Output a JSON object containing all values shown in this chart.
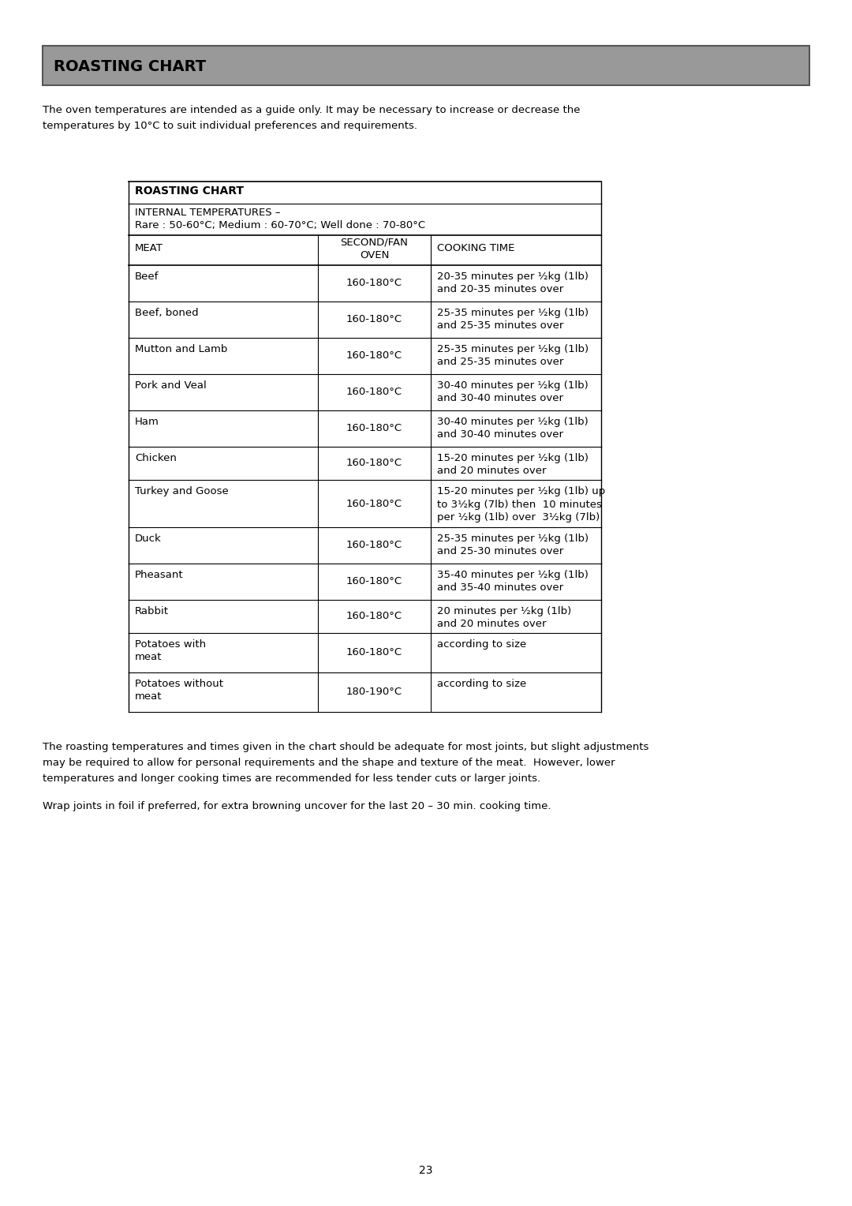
{
  "page_title": "ROASTING CHART",
  "header_bg": "#999999",
  "header_border": "#555555",
  "intro_text_line1": "The oven temperatures are intended as a guide only. It may be necessary to increase or decrease the",
  "intro_text_line2": "temperatures by 10°C to suit individual preferences and requirements.",
  "table_title": "ROASTING CHART",
  "internal_temps_line1": "INTERNAL TEMPERATURES –",
  "internal_temps_line2": "Rare : 50-60°C; Medium : 60-70°C; Well done : 70-80°C",
  "col_headers": [
    "MEAT",
    "SECOND/FAN\nOVEN",
    "COOKING TIME"
  ],
  "rows": [
    [
      "Beef",
      "160-180°C",
      "20-35 minutes per ½kg (1lb)\nand 20-35 minutes over"
    ],
    [
      "Beef, boned",
      "160-180°C",
      "25-35 minutes per ½kg (1lb)\nand 25-35 minutes over"
    ],
    [
      "Mutton and Lamb",
      "160-180°C",
      "25-35 minutes per ½kg (1lb)\nand 25-35 minutes over"
    ],
    [
      "Pork and Veal",
      "160-180°C",
      "30-40 minutes per ½kg (1lb)\nand 30-40 minutes over"
    ],
    [
      "Ham",
      "160-180°C",
      "30-40 minutes per ½kg (1lb)\nand 30-40 minutes over"
    ],
    [
      "Chicken",
      "160-180°C",
      "15-20 minutes per ½kg (1lb)\nand 20 minutes over"
    ],
    [
      "Turkey and Goose",
      "160-180°C",
      "15-20 minutes per ½kg (1lb) up\nto 3½kg (7lb) then  10 minutes\nper ½kg (1lb) over  3½kg (7lb)"
    ],
    [
      "Duck",
      "160-180°C",
      "25-35 minutes per ½kg (1lb)\nand 25-30 minutes over"
    ],
    [
      "Pheasant",
      "160-180°C",
      "35-40 minutes per ½kg (1lb)\nand 35-40 minutes over"
    ],
    [
      "Rabbit",
      "160-180°C",
      "20 minutes per ½kg (1lb)\nand 20 minutes over"
    ],
    [
      "Potatoes with\nmeat",
      "160-180°C",
      "according to size"
    ],
    [
      "Potatoes without\nmeat",
      "180-190°C",
      "according to size"
    ]
  ],
  "footer_text1_line1": "The roasting temperatures and times given in the chart should be adequate for most joints, but slight adjustments",
  "footer_text1_line2": "may be required to allow for personal requirements and the shape and texture of the meat.  However, lower",
  "footer_text1_line3": "temperatures and longer cooking times are recommended for less tender cuts or larger joints.",
  "footer_text2": "Wrap joints in foil if preferred, for extra browning uncover for the last 20 – 30 min. cooking time.",
  "page_number": "23",
  "bg_color": "#ffffff",
  "text_color": "#000000",
  "table_border_color": "#000000"
}
